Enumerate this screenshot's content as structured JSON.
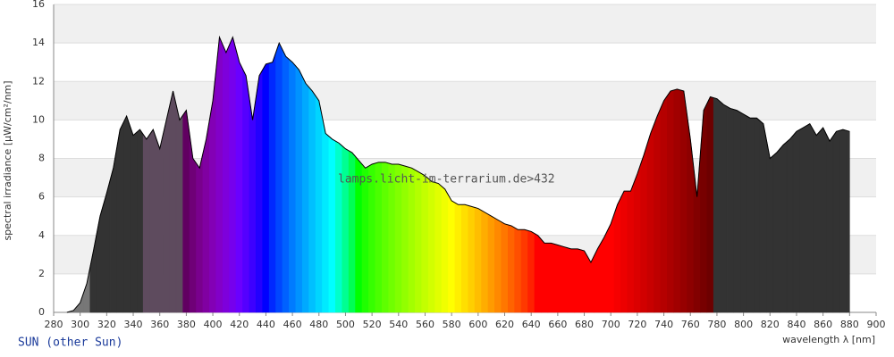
{
  "chart_data": {
    "type": "area",
    "x_label": "wavelength λ [nm]",
    "y_label": "spectral irradiance [µW/cm²/nm]",
    "subtitle": "SUN (other Sun)",
    "watermark": "lamps.licht-im-terrarium.de>432",
    "x": [
      290,
      295,
      300,
      305,
      310,
      315,
      320,
      325,
      330,
      335,
      340,
      345,
      350,
      355,
      360,
      365,
      370,
      375,
      380,
      385,
      390,
      395,
      400,
      405,
      410,
      415,
      420,
      425,
      430,
      435,
      440,
      445,
      450,
      455,
      460,
      465,
      470,
      475,
      480,
      485,
      490,
      495,
      500,
      505,
      510,
      515,
      520,
      525,
      530,
      535,
      540,
      545,
      550,
      555,
      560,
      565,
      570,
      575,
      580,
      585,
      590,
      595,
      600,
      605,
      610,
      615,
      620,
      625,
      630,
      635,
      640,
      645,
      650,
      655,
      660,
      665,
      670,
      675,
      680,
      685,
      690,
      695,
      700,
      705,
      710,
      715,
      720,
      725,
      730,
      735,
      740,
      745,
      750,
      755,
      760,
      765,
      770,
      775,
      780,
      785,
      790,
      795,
      800,
      805,
      810,
      815,
      820,
      825,
      830,
      835,
      840,
      845,
      850,
      855,
      860,
      865,
      870,
      875,
      880
    ],
    "values": [
      0,
      0.1,
      0.5,
      1.5,
      3.2,
      5,
      6.2,
      7.5,
      9.5,
      10.2,
      9.2,
      9.5,
      9,
      9.5,
      8.5,
      10,
      11.5,
      10,
      10.5,
      8,
      7.5,
      9,
      11,
      14.3,
      13.5,
      14.3,
      13,
      12.3,
      10,
      12.3,
      12.9,
      13,
      14,
      13.3,
      13,
      12.6,
      11.9,
      11.5,
      11,
      9.3,
      9,
      8.8,
      8.5,
      8.3,
      7.9,
      7.5,
      7.7,
      7.8,
      7.8,
      7.7,
      7.7,
      7.6,
      7.5,
      7.3,
      7.1,
      6.8,
      6.7,
      6.4,
      5.8,
      5.6,
      5.6,
      5.5,
      5.4,
      5.2,
      5,
      4.8,
      4.6,
      4.5,
      4.3,
      4.3,
      4.2,
      4,
      3.6,
      3.6,
      3.5,
      3.4,
      3.3,
      3.3,
      3.2,
      2.6,
      3.3,
      3.9,
      4.6,
      5.6,
      6.3,
      6.3,
      7.2,
      8.2,
      9.3,
      10.2,
      11,
      11.5,
      11.6,
      11.5,
      9,
      6,
      10.5,
      11.2,
      11.1,
      10.8,
      10.6,
      10.5,
      10.3,
      10.1,
      10.1,
      9.8,
      8,
      8.3,
      8.7,
      9,
      9.4,
      9.6,
      9.8,
      9.2,
      9.6,
      8.9,
      9.4,
      9.5,
      9.4
    ],
    "xlim": [
      280,
      900
    ],
    "xticks": [
      280,
      300,
      320,
      340,
      360,
      380,
      400,
      420,
      440,
      460,
      480,
      500,
      520,
      540,
      560,
      580,
      600,
      620,
      640,
      660,
      680,
      700,
      720,
      740,
      760,
      780,
      800,
      820,
      840,
      860,
      880,
      900
    ],
    "ylim": [
      0,
      16
    ],
    "yticks": [
      0,
      2,
      4,
      6,
      8,
      10,
      12,
      14,
      16
    ],
    "grid": true
  }
}
